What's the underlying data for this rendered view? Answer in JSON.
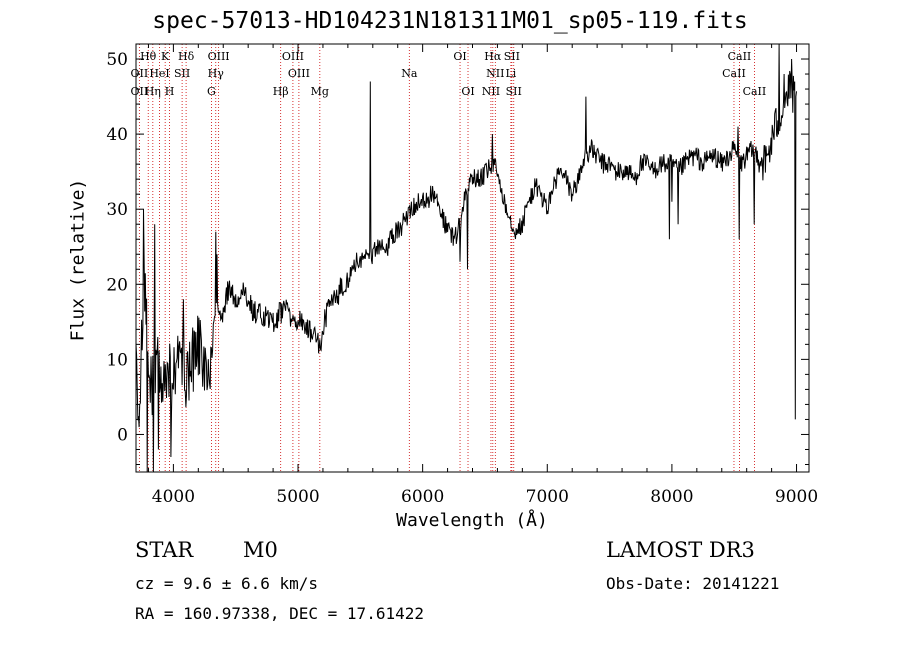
{
  "title": "spec-57013-HD104231N181311M01_sp05-119.fits",
  "footer": {
    "class_label": "STAR",
    "subclass": "M0",
    "survey": "LAMOST DR3",
    "cz": "cz = 9.6 ± 6.6 km/s",
    "obs_date": "Obs-Date: 20141221",
    "coords": "RA = 160.97338, DEC =  17.61422"
  },
  "chart_data": {
    "type": "line",
    "title": "spec-57013-HD104231N181311M01_sp05-119.fits",
    "xlabel": "Wavelength (Å)",
    "ylabel": "Flux (relative)",
    "xlim": [
      3700,
      9100
    ],
    "ylim": [
      -5,
      52
    ],
    "xticks": [
      4000,
      5000,
      6000,
      7000,
      8000,
      9000
    ],
    "yticks": [
      0,
      10,
      20,
      30,
      40,
      50
    ],
    "grid": false,
    "line_color": "#000000",
    "marker_color": "#cc0000",
    "spectrum_anchors": [
      [
        3700,
        8
      ],
      [
        3730,
        2
      ],
      [
        3760,
        22
      ],
      [
        3790,
        12
      ],
      [
        3830,
        6
      ],
      [
        3870,
        12
      ],
      [
        3910,
        4
      ],
      [
        3950,
        10
      ],
      [
        3990,
        6
      ],
      [
        4040,
        13
      ],
      [
        4090,
        6
      ],
      [
        4140,
        9
      ],
      [
        4200,
        12
      ],
      [
        4260,
        8
      ],
      [
        4300,
        10
      ],
      [
        4350,
        18
      ],
      [
        4400,
        16
      ],
      [
        4450,
        20
      ],
      [
        4500,
        18
      ],
      [
        4560,
        19
      ],
      [
        4620,
        17
      ],
      [
        4680,
        16
      ],
      [
        4740,
        16
      ],
      [
        4800,
        15
      ],
      [
        4850,
        16
      ],
      [
        4900,
        17
      ],
      [
        4960,
        15
      ],
      [
        5020,
        15
      ],
      [
        5080,
        14
      ],
      [
        5140,
        13
      ],
      [
        5180,
        11
      ],
      [
        5200,
        14
      ],
      [
        5240,
        17
      ],
      [
        5300,
        18
      ],
      [
        5360,
        20
      ],
      [
        5420,
        21
      ],
      [
        5480,
        23
      ],
      [
        5540,
        24
      ],
      [
        5600,
        24
      ],
      [
        5660,
        25
      ],
      [
        5720,
        25
      ],
      [
        5780,
        27
      ],
      [
        5840,
        28
      ],
      [
        5900,
        30
      ],
      [
        5960,
        31
      ],
      [
        6020,
        31
      ],
      [
        6080,
        32
      ],
      [
        6140,
        30
      ],
      [
        6200,
        27
      ],
      [
        6260,
        26
      ],
      [
        6300,
        28
      ],
      [
        6340,
        32
      ],
      [
        6400,
        34
      ],
      [
        6460,
        34
      ],
      [
        6520,
        35
      ],
      [
        6560,
        36
      ],
      [
        6600,
        35
      ],
      [
        6640,
        32
      ],
      [
        6680,
        30
      ],
      [
        6720,
        28
      ],
      [
        6760,
        27
      ],
      [
        6800,
        28
      ],
      [
        6850,
        31
      ],
      [
        6900,
        33
      ],
      [
        6950,
        32
      ],
      [
        7000,
        30
      ],
      [
        7050,
        33
      ],
      [
        7100,
        35
      ],
      [
        7150,
        34
      ],
      [
        7200,
        32
      ],
      [
        7250,
        34
      ],
      [
        7300,
        37
      ],
      [
        7350,
        38
      ],
      [
        7400,
        37
      ],
      [
        7450,
        36
      ],
      [
        7500,
        36
      ],
      [
        7550,
        35
      ],
      [
        7600,
        35
      ],
      [
        7650,
        35
      ],
      [
        7700,
        34
      ],
      [
        7750,
        36
      ],
      [
        7800,
        36
      ],
      [
        7850,
        35
      ],
      [
        7900,
        36
      ],
      [
        7950,
        36
      ],
      [
        8000,
        36
      ],
      [
        8050,
        35
      ],
      [
        8100,
        36
      ],
      [
        8150,
        37
      ],
      [
        8200,
        37
      ],
      [
        8250,
        36
      ],
      [
        8300,
        37
      ],
      [
        8350,
        37
      ],
      [
        8400,
        36
      ],
      [
        8450,
        37
      ],
      [
        8500,
        38
      ],
      [
        8550,
        36
      ],
      [
        8600,
        37
      ],
      [
        8650,
        38
      ],
      [
        8700,
        37
      ],
      [
        8750,
        36
      ],
      [
        8800,
        39
      ],
      [
        8850,
        42
      ],
      [
        8900,
        44
      ],
      [
        8950,
        46
      ],
      [
        9000,
        44
      ]
    ],
    "spikes": [
      [
        3760,
        30
      ],
      [
        3790,
        -5
      ],
      [
        3840,
        -5
      ],
      [
        3850,
        28
      ],
      [
        3880,
        -2
      ],
      [
        3980,
        -3
      ],
      [
        4080,
        18
      ],
      [
        4340,
        27
      ],
      [
        4350,
        24
      ],
      [
        5580,
        47
      ],
      [
        6300,
        23
      ],
      [
        6360,
        22
      ],
      [
        6560,
        40
      ],
      [
        7310,
        45
      ],
      [
        7980,
        26
      ],
      [
        8000,
        31
      ],
      [
        8050,
        28
      ],
      [
        8530,
        41
      ],
      [
        8540,
        26
      ],
      [
        8660,
        28
      ],
      [
        8860,
        52
      ],
      [
        8900,
        48
      ],
      [
        8960,
        50
      ],
      [
        8990,
        2
      ]
    ],
    "annotations": [
      {
        "label": "Hθ",
        "x": 3798,
        "row": 1
      },
      {
        "label": "K",
        "x": 3934,
        "row": 1
      },
      {
        "label": "Hδ",
        "x": 4102,
        "row": 1
      },
      {
        "label": "OIII",
        "x": 4363,
        "row": 1
      },
      {
        "label": "OIII",
        "x": 4959,
        "row": 1
      },
      {
        "label": "OI",
        "x": 6300,
        "row": 1
      },
      {
        "label": "Hα",
        "x": 6563,
        "row": 1
      },
      {
        "label": "SII",
        "x": 6716,
        "row": 1
      },
      {
        "label": "CaII",
        "x": 8542,
        "row": 1
      },
      {
        "label": "OII",
        "x": 3727,
        "row": 2
      },
      {
        "label": "HeI",
        "x": 3889,
        "row": 2
      },
      {
        "label": "SII",
        "x": 4070,
        "row": 2
      },
      {
        "label": "Hγ",
        "x": 4340,
        "row": 2
      },
      {
        "label": "OIII",
        "x": 5007,
        "row": 2
      },
      {
        "label": "Na",
        "x": 5893,
        "row": 2
      },
      {
        "label": "NII",
        "x": 6583,
        "row": 2
      },
      {
        "label": "Li",
        "x": 6708,
        "row": 2
      },
      {
        "label": "CaII",
        "x": 8498,
        "row": 2
      },
      {
        "label": "OII",
        "x": 3727,
        "row": 3
      },
      {
        "label": "Hη",
        "x": 3835,
        "row": 3
      },
      {
        "label": "H",
        "x": 3969,
        "row": 3
      },
      {
        "label": "G",
        "x": 4305,
        "row": 3
      },
      {
        "label": "Hβ",
        "x": 4861,
        "row": 3
      },
      {
        "label": "Mg",
        "x": 5175,
        "row": 3
      },
      {
        "label": "OI",
        "x": 6364,
        "row": 3
      },
      {
        "label": "NII",
        "x": 6548,
        "row": 3
      },
      {
        "label": "SII",
        "x": 6731,
        "row": 3
      },
      {
        "label": "CaII",
        "x": 8662,
        "row": 3
      }
    ],
    "marker_lines": [
      3727,
      3798,
      3835,
      3889,
      3934,
      3969,
      4070,
      4102,
      4305,
      4340,
      4363,
      4861,
      4959,
      5007,
      5175,
      5893,
      6300,
      6364,
      6548,
      6563,
      6583,
      6708,
      6716,
      6731,
      8498,
      8542,
      8662
    ]
  }
}
